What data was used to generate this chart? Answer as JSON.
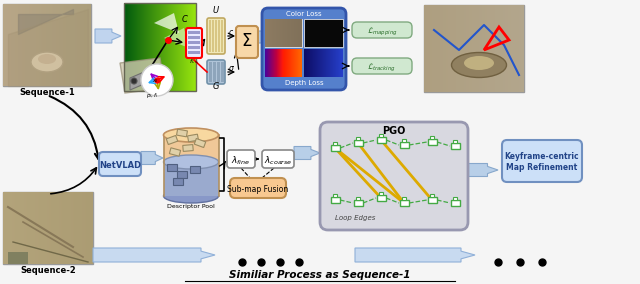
{
  "bg_color": "#f5f5f5",
  "seq1_label": "Sequence-1",
  "seq2_label": "Sequence-2",
  "netvlad_label": "NetVLAD",
  "descriptor_pool_label": "Descriptor Pool",
  "submap_fusion_label": "Sub-map Fusion",
  "pgo_label": "PGO",
  "loop_edges_label": "Loop Edges",
  "keyframe_label": "Keyframe-centric\nMap Refinement",
  "color_loss_label": "Color Loss",
  "depth_loss_label": "Depth Loss",
  "similar_process_label": "Similiar Process as Sequence-1",
  "img1_colors": [
    "#c8b090",
    "#b8a080",
    "#a89070",
    "#b0a888",
    "#c0b898"
  ],
  "img2_colors": [
    "#c0a880",
    "#b09870",
    "#c8b898",
    "#d0c0a0",
    "#b8a888"
  ],
  "img3_colors": [
    "#c0a870",
    "#b09860",
    "#b8a880",
    "#c8b8a0",
    "#a89070"
  ],
  "green_map_colors": [
    "#8aaa00",
    "#60cc00",
    "#40dd20",
    "#20cc60",
    "#00aa80"
  ],
  "arrow_color": "#b8cfe8",
  "node_color": "#44aa44",
  "loop_color": "#ddaa00",
  "netvlad_bg": "#cce0f8",
  "netvlad_ec": "#7090c0",
  "lmap_bg": "#d0e8d0",
  "lmap_ec": "#80aa80",
  "kf_bg": "#cce0f8",
  "kf_ec": "#7090c0",
  "pgo_bg": "#d8d8e0",
  "pgo_ec": "#9898b0",
  "loss_bg": "#5580cc",
  "loss_ec": "#3355aa",
  "sigma_bg": "#f8d8a8",
  "sigma_ec": "#c09050",
  "submap_bg": "#f8c890",
  "submap_ec": "#c09050"
}
